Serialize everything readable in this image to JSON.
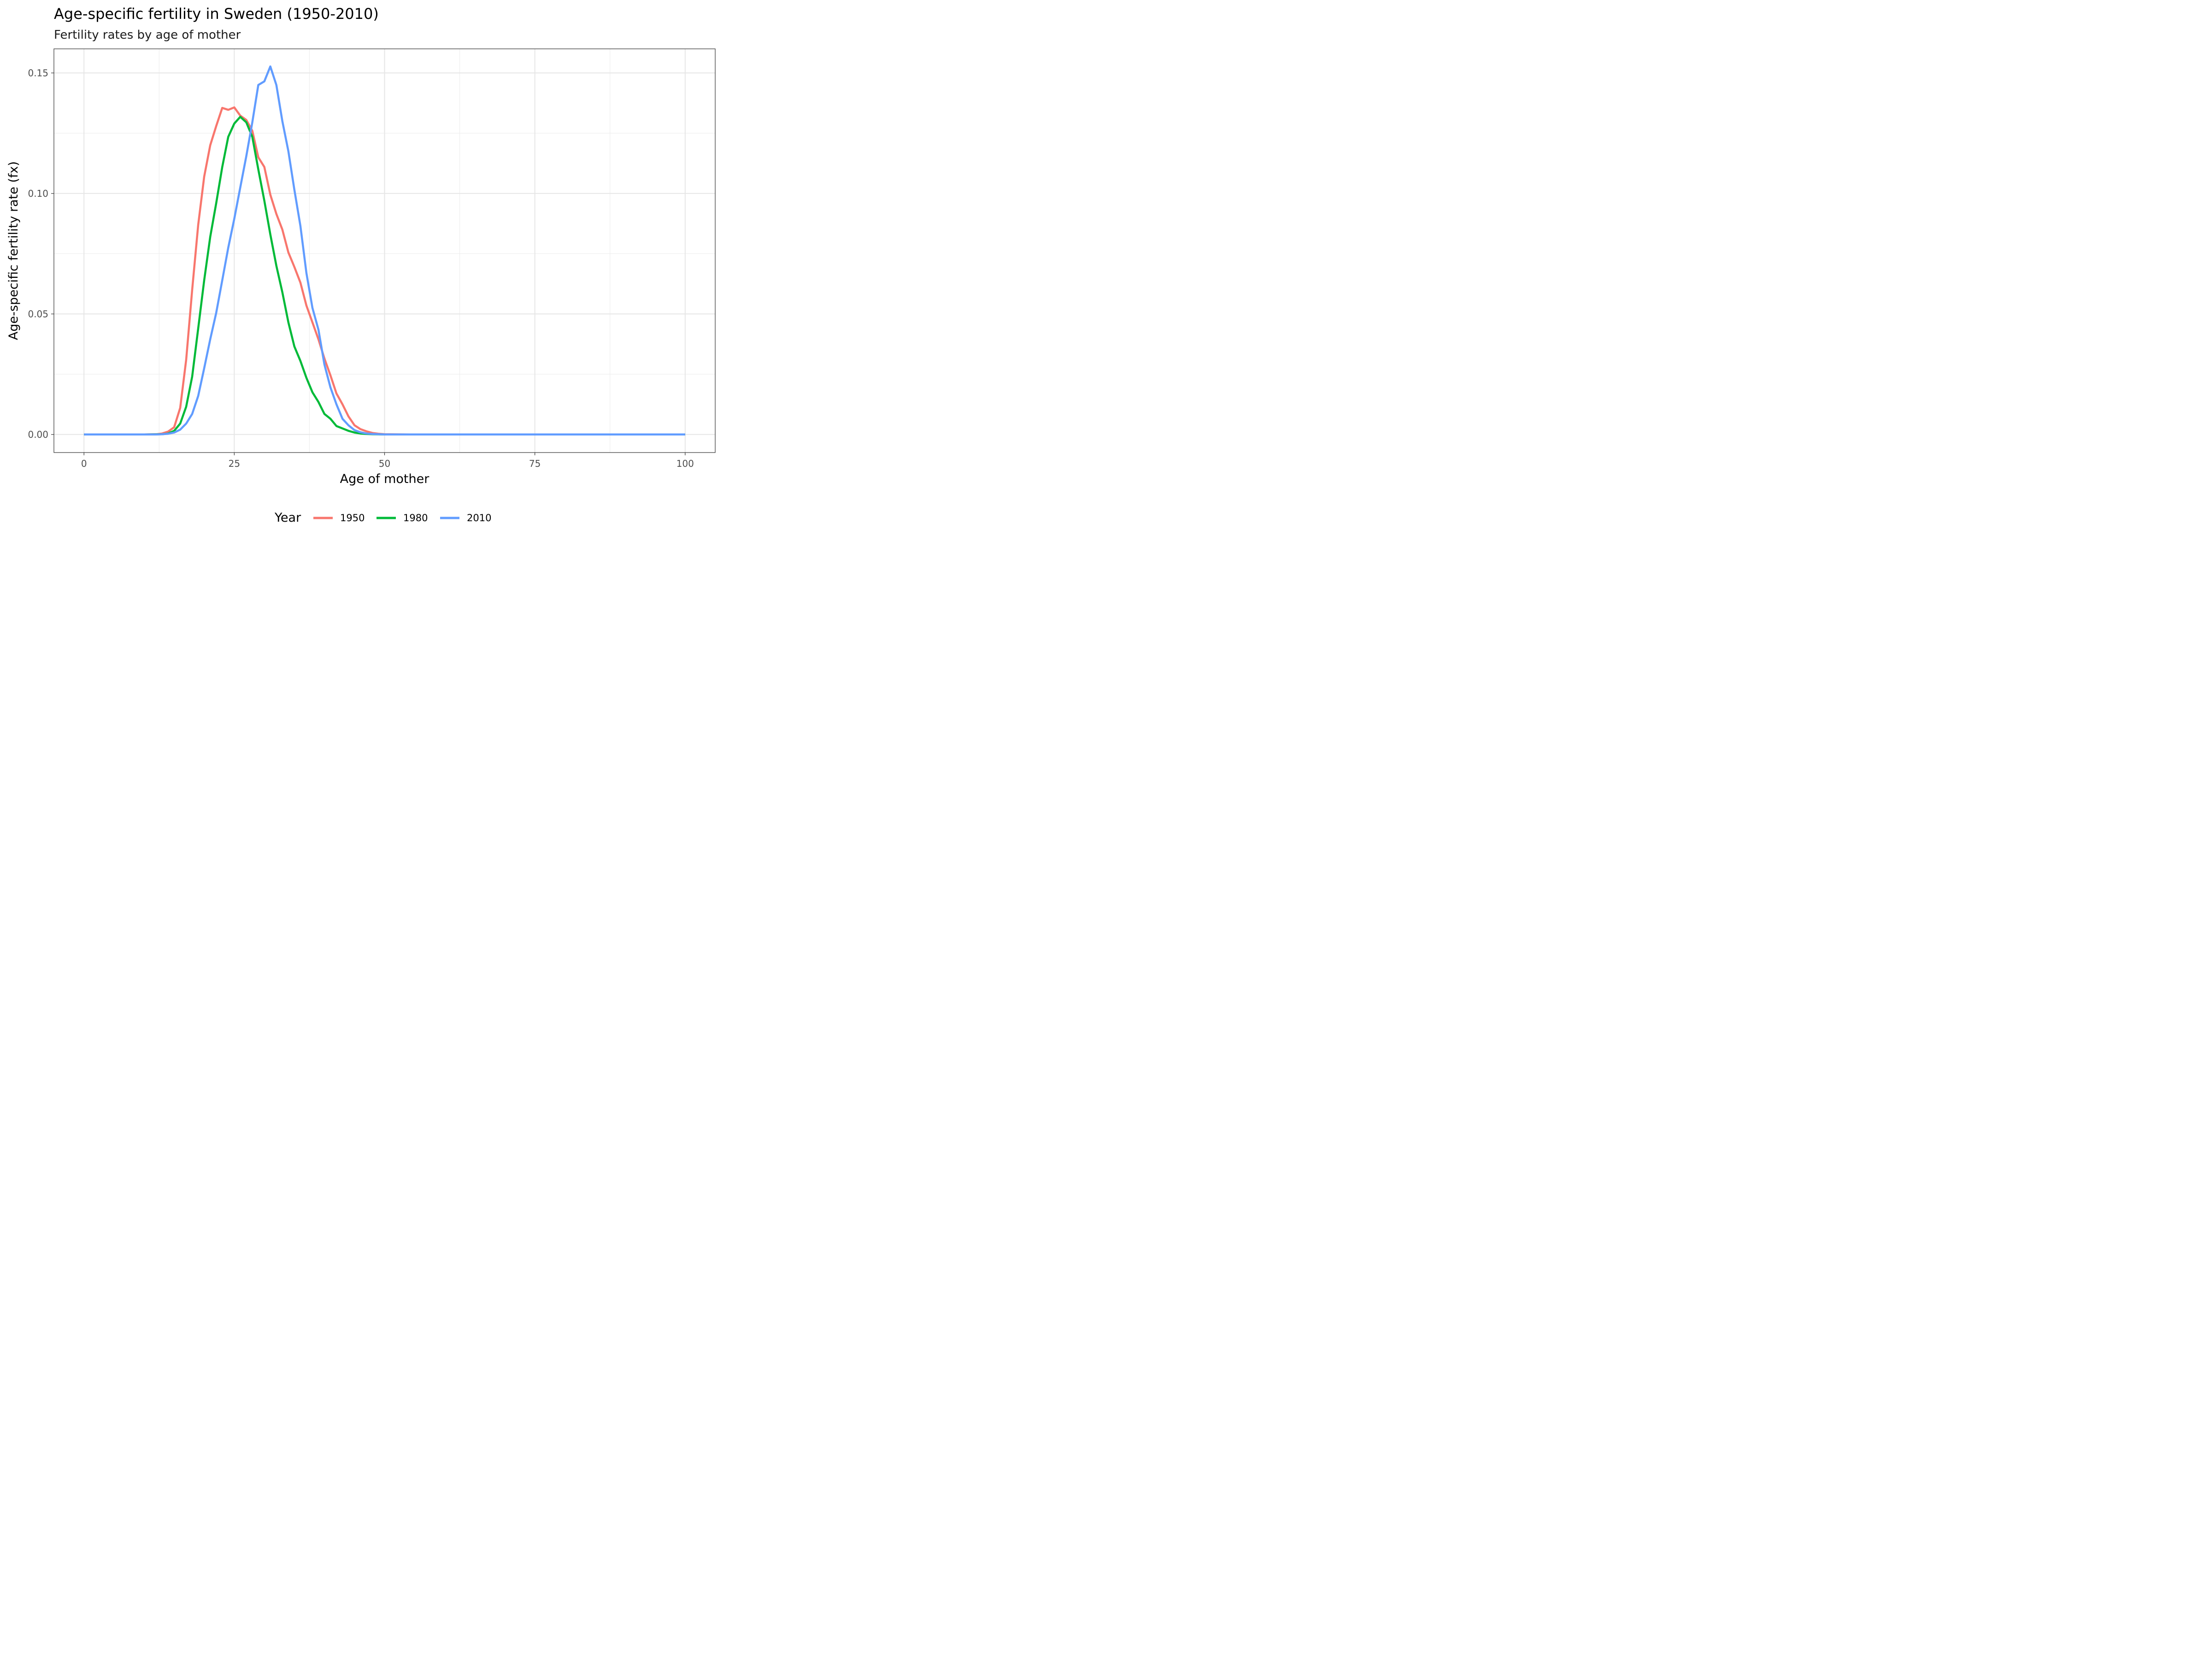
{
  "title": "Age-specific fertility in Sweden (1950-2010)",
  "subtitle": "Fertility rates by age of mother",
  "colors": {
    "1950": "#F8766D",
    "1980": "#00BA38",
    "2010": "#619CFF"
  },
  "chart_data": {
    "type": "line",
    "title": "Age-specific fertility in Sweden (1950-2010)",
    "subtitle": "Fertility rates by age of mother",
    "xlabel": "Age of mother",
    "ylabel": "Age-specific fertility rate (fx)",
    "xlim": [
      -5,
      105
    ],
    "ylim": [
      -0.0075,
      0.16
    ],
    "x_ticks": [
      0,
      25,
      50,
      75,
      100
    ],
    "x_tick_labels": [
      "0",
      "25",
      "50",
      "75",
      "100"
    ],
    "y_ticks": [
      0,
      0.05,
      0.1,
      0.15
    ],
    "y_tick_labels": [
      "0.00",
      "0.05",
      "0.10",
      "0.15"
    ],
    "grid": true,
    "legend": {
      "title": "Year",
      "position": "bottom"
    },
    "series": [
      {
        "name": "1950",
        "x": [
          0,
          10,
          12,
          13,
          14,
          15,
          16,
          17,
          18,
          19,
          20,
          21,
          22,
          23,
          24,
          25,
          26,
          27,
          28,
          29,
          30,
          31,
          32,
          33,
          34,
          35,
          36,
          37,
          38,
          39,
          40,
          41,
          42,
          43,
          44,
          45,
          46,
          47,
          48,
          49,
          50,
          55,
          100
        ],
        "y": [
          0,
          0,
          0.0001,
          0.0004,
          0.0012,
          0.003,
          0.011,
          0.031,
          0.06,
          0.087,
          0.107,
          0.12,
          0.128,
          0.1355,
          0.1347,
          0.1357,
          0.1323,
          0.1305,
          0.126,
          0.115,
          0.111,
          0.0995,
          0.0915,
          0.085,
          0.0755,
          0.0695,
          0.063,
          0.0535,
          0.0465,
          0.0395,
          0.0315,
          0.0245,
          0.017,
          0.0125,
          0.0075,
          0.0038,
          0.0022,
          0.0013,
          0.0006,
          0.0003,
          0.0001,
          0,
          0
        ]
      },
      {
        "name": "1980",
        "x": [
          0,
          10,
          13,
          14,
          15,
          16,
          17,
          18,
          19,
          20,
          21,
          22,
          23,
          24,
          25,
          26,
          27,
          28,
          29,
          30,
          31,
          32,
          33,
          34,
          35,
          36,
          37,
          38,
          39,
          40,
          41,
          42,
          43,
          44,
          45,
          46,
          47,
          48,
          50,
          55,
          100
        ],
        "y": [
          0,
          0,
          0.0001,
          0.0004,
          0.0015,
          0.0045,
          0.0115,
          0.024,
          0.044,
          0.064,
          0.082,
          0.096,
          0.111,
          0.1235,
          0.129,
          0.1318,
          0.1295,
          0.1235,
          0.11,
          0.097,
          0.083,
          0.07,
          0.059,
          0.0465,
          0.0365,
          0.0305,
          0.0235,
          0.0175,
          0.0135,
          0.0085,
          0.0065,
          0.0035,
          0.0025,
          0.0015,
          0.0008,
          0.0004,
          0.0002,
          0.0001,
          0,
          0,
          0
        ]
      },
      {
        "name": "2010",
        "x": [
          0,
          10,
          12,
          13,
          14,
          15,
          16,
          17,
          18,
          19,
          20,
          21,
          22,
          23,
          24,
          25,
          26,
          27,
          28,
          29,
          30,
          31,
          32,
          33,
          34,
          35,
          36,
          37,
          38,
          39,
          40,
          41,
          42,
          43,
          44,
          45,
          46,
          47,
          48,
          50,
          55,
          100
        ],
        "y": [
          0,
          0,
          0,
          0.0001,
          0.0003,
          0.0008,
          0.002,
          0.0045,
          0.0085,
          0.016,
          0.0275,
          0.0395,
          0.0505,
          0.064,
          0.0775,
          0.0895,
          0.1025,
          0.1155,
          0.1295,
          0.145,
          0.1465,
          0.1527,
          0.145,
          0.13,
          0.1175,
          0.1015,
          0.0865,
          0.067,
          0.0525,
          0.0435,
          0.029,
          0.0195,
          0.0125,
          0.0065,
          0.0038,
          0.0018,
          0.0009,
          0.0004,
          0.0002,
          0,
          0,
          0
        ]
      }
    ]
  }
}
